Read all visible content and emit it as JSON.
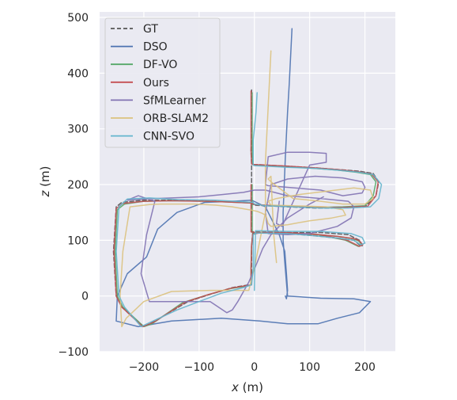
{
  "chart_data": {
    "type": "line",
    "xlabel_var": "x",
    "xlabel_unit": " (m)",
    "ylabel_var": "z",
    "ylabel_unit": " (m)",
    "xlim": [
      -280,
      255
    ],
    "ylim": [
      -100,
      510
    ],
    "xticks": [
      -200,
      -100,
      0,
      100,
      200
    ],
    "yticks": [
      -100,
      0,
      100,
      200,
      300,
      400,
      500
    ],
    "xtick_labels": [
      "−200",
      "−100",
      "0",
      "100",
      "200"
    ],
    "ytick_labels": [
      "−100",
      "0",
      "100",
      "200",
      "300",
      "400",
      "500"
    ],
    "grid": true,
    "legend_position": "top-left",
    "series": [
      {
        "name": "GT",
        "color": "#555555",
        "dash": true,
        "x": [
          -5,
          -5,
          -5,
          -6,
          -5,
          -4,
          0,
          20,
          60,
          110,
          150,
          190,
          215,
          225,
          220,
          200,
          150,
          110,
          60,
          20,
          0,
          -5,
          -8,
          -80,
          -150,
          -200,
          -240,
          -250,
          -255,
          -250,
          -240,
          -200,
          -180,
          -120,
          -80,
          -40,
          -10,
          -5,
          -5,
          -5,
          -3,
          0,
          10,
          60,
          110,
          150,
          180,
          190,
          195,
          190,
          170,
          120,
          60,
          0,
          -5,
          -5,
          -5
        ],
        "y": [
          370,
          330,
          290,
          260,
          238,
          236,
          236,
          235,
          233,
          230,
          227,
          224,
          220,
          205,
          180,
          160,
          158,
          158,
          160,
          162,
          163,
          166,
          168,
          170,
          172,
          172,
          168,
          160,
          80,
          0,
          -20,
          -55,
          -45,
          -10,
          3,
          15,
          20,
          20,
          50,
          90,
          112,
          114,
          114,
          112,
          108,
          104,
          100,
          92,
          90,
          100,
          110,
          114,
          114,
          115,
          116,
          200,
          365
        ]
      },
      {
        "name": "DSO",
        "color": "#4c72b0",
        "dash": false,
        "x": [
          68,
          65,
          63,
          60,
          58,
          56,
          54,
          52,
          52,
          55,
          60,
          120,
          180,
          210,
          190,
          150,
          115,
          60,
          10,
          -60,
          -150,
          -210,
          -250,
          -248,
          -230,
          -195,
          -175,
          -140,
          -90,
          -40,
          -5,
          20,
          45,
          55,
          58,
          60,
          58,
          56
        ],
        "y": [
          480,
          420,
          380,
          330,
          290,
          250,
          200,
          150,
          100,
          60,
          0,
          -4,
          -5,
          -10,
          -30,
          -40,
          -50,
          -50,
          -45,
          -40,
          -45,
          -55,
          -45,
          0,
          40,
          70,
          120,
          150,
          168,
          170,
          172,
          160,
          110,
          80,
          40,
          10,
          -5,
          0
        ]
      },
      {
        "name": "DF-VO",
        "color": "#55a868",
        "dash": false,
        "x": [
          -4,
          -4,
          -4,
          -4,
          -3,
          0,
          20,
          60,
          110,
          150,
          185,
          210,
          220,
          215,
          200,
          160,
          110,
          60,
          15,
          -2,
          -6,
          -80,
          -150,
          -200,
          -235,
          -248,
          -252,
          -248,
          -238,
          -200,
          -185,
          -130,
          -85,
          -45,
          -12,
          -6,
          -6,
          -5,
          -3,
          5,
          55,
          105,
          150,
          178,
          188,
          195,
          188,
          165,
          115,
          60,
          5,
          -4,
          -4
        ],
        "y": [
          365,
          330,
          295,
          262,
          236,
          235,
          234,
          232,
          229,
          226,
          222,
          218,
          205,
          180,
          162,
          160,
          159,
          161,
          163,
          165,
          167,
          170,
          171,
          170,
          165,
          155,
          80,
          0,
          -20,
          -55,
          -50,
          -12,
          2,
          13,
          18,
          20,
          50,
          90,
          110,
          113,
          113,
          111,
          107,
          103,
          99,
          92,
          89,
          100,
          110,
          113,
          114,
          114,
          200
        ]
      },
      {
        "name": "Ours",
        "color": "#c44e52",
        "dash": false,
        "x": [
          -6,
          -6,
          -6,
          -6,
          -5,
          0,
          20,
          60,
          110,
          150,
          188,
          212,
          224,
          220,
          205,
          160,
          110,
          60,
          18,
          0,
          -6,
          -80,
          -150,
          -200,
          -238,
          -250,
          -254,
          -250,
          -240,
          -202,
          -182,
          -125,
          -82,
          -42,
          -11,
          -6,
          -6,
          -5,
          -3,
          8,
          58,
          108,
          150,
          180,
          190,
          196,
          190,
          168,
          118,
          60,
          2,
          -6,
          -6
        ],
        "y": [
          368,
          330,
          292,
          260,
          237,
          236,
          235,
          233,
          230,
          227,
          223,
          219,
          205,
          180,
          161,
          159,
          159,
          161,
          163,
          164,
          167,
          170,
          171,
          170,
          166,
          157,
          80,
          0,
          -20,
          -55,
          -47,
          -11,
          3,
          14,
          19,
          20,
          50,
          90,
          111,
          113,
          113,
          111,
          107,
          103,
          99,
          92,
          89,
          100,
          110,
          114,
          114,
          115,
          200
        ]
      },
      {
        "name": "SfMLearner",
        "color": "#8172b2",
        "dash": false,
        "x": [
          125,
          100,
          60,
          30,
          15,
          5,
          -10,
          -30,
          -40,
          -50,
          -80,
          -140,
          -190,
          -205,
          -195,
          -180,
          -210,
          -230,
          -200,
          -150,
          -100,
          -60,
          -20,
          0,
          20,
          60,
          120,
          170,
          180,
          175,
          150,
          100,
          60,
          25,
          20,
          30,
          60,
          110,
          160,
          195,
          200,
          195,
          160,
          120,
          60,
          25,
          20,
          25,
          60,
          100,
          130,
          130,
          100,
          50,
          40,
          45
        ],
        "y": [
          178,
          165,
          140,
          110,
          85,
          60,
          25,
          -10,
          -25,
          -30,
          -10,
          -10,
          -10,
          40,
          110,
          170,
          180,
          172,
          174,
          176,
          178,
          182,
          186,
          190,
          190,
          180,
          175,
          170,
          160,
          140,
          125,
          112,
          110,
          112,
          150,
          200,
          210,
          215,
          212,
          205,
          195,
          185,
          180,
          190,
          195,
          198,
          200,
          250,
          258,
          258,
          256,
          240,
          235,
          125,
          130,
          170
        ]
      },
      {
        "name": "ORB-SLAM2",
        "color": "#dbc27e",
        "dash": false,
        "x": [
          30,
          28,
          26,
          24,
          22,
          20,
          20,
          20,
          10,
          0,
          -10,
          -80,
          -150,
          -200,
          -232,
          -240,
          -243,
          -238,
          -225,
          -190,
          -170,
          -110,
          -70,
          -40,
          -10,
          5,
          15,
          20,
          22,
          25,
          30,
          60,
          100,
          140,
          165,
          160,
          130,
          70,
          30,
          25,
          40,
          80,
          130,
          180,
          210,
          215,
          200,
          160,
          120,
          70,
          30,
          25,
          30,
          35,
          40
        ],
        "y": [
          440,
          400,
          360,
          320,
          280,
          240,
          200,
          150,
          100,
          50,
          10,
          10,
          8,
          -10,
          -40,
          -55,
          0,
          80,
          160,
          164,
          165,
          165,
          163,
          160,
          155,
          152,
          148,
          145,
          140,
          130,
          125,
          128,
          135,
          140,
          145,
          155,
          160,
          162,
          163,
          170,
          175,
          182,
          188,
          194,
          190,
          175,
          165,
          165,
          170,
          175,
          205,
          210,
          215,
          110,
          60
        ]
      },
      {
        "name": "CNN-SVO",
        "color": "#64b5cd",
        "dash": false,
        "x": [
          5,
          3,
          0,
          -2,
          -2,
          -2,
          0,
          20,
          60,
          110,
          150,
          190,
          215,
          230,
          225,
          210,
          170,
          120,
          70,
          20,
          0,
          -2,
          -70,
          -140,
          -190,
          -230,
          -245,
          -250,
          -245,
          -235,
          -205,
          -190,
          -140,
          -100,
          -60,
          -20,
          -5,
          -2,
          -2,
          -2,
          2,
          10,
          60,
          110,
          150,
          180,
          192,
          200,
          195,
          175,
          120,
          60,
          10,
          2,
          0
        ],
        "y": [
          365,
          330,
          300,
          280,
          260,
          235,
          234,
          233,
          231,
          229,
          226,
          222,
          218,
          200,
          175,
          160,
          158,
          158,
          160,
          162,
          165,
          168,
          172,
          173,
          176,
          174,
          160,
          80,
          0,
          -20,
          -55,
          -48,
          -25,
          -10,
          5,
          15,
          20,
          50,
          90,
          110,
          113,
          113,
          112,
          108,
          104,
          100,
          92,
          95,
          105,
          112,
          116,
          116,
          117,
          117,
          10
        ]
      }
    ]
  }
}
